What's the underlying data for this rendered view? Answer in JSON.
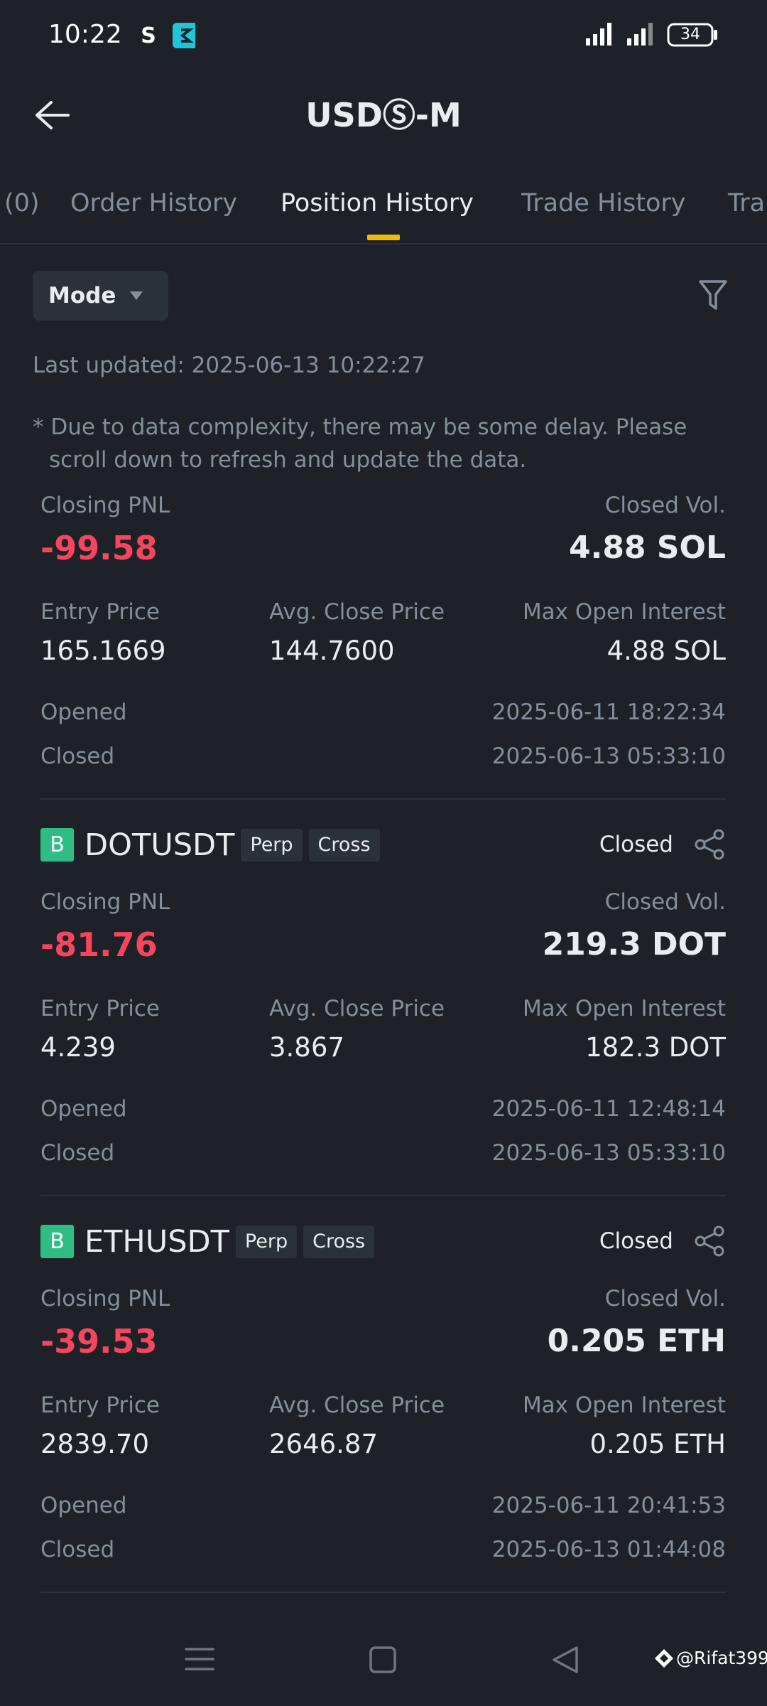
{
  "status_bar": {
    "time": "10:22",
    "battery": "34"
  },
  "header": {
    "title": "USDⓈ-M"
  },
  "tabs": [
    "(0)",
    "Order History",
    "Position History",
    "Trade History",
    "Tra"
  ],
  "active_tab": 2,
  "filter": {
    "mode": "Mode"
  },
  "last_updated": "Last updated: 2025-06-13 10:22:27",
  "note": "* Due to data complexity, there may be some delay. Please scroll down to refresh and update the data.",
  "positions": [
    {
      "closing_pnl_label": "Closing PNL",
      "closing_pnl": "-99.58",
      "closed_vol_label": "Closed Vol.",
      "closed_vol": "4.88 SOL",
      "entry_price_label": "Entry Price",
      "entry_price": "165.1669",
      "avg_close_price_label": "Avg. Close Price",
      "avg_close_price": "144.7600",
      "max_open_interest_label": "Max Open Interest",
      "max_open_interest": "4.88 SOL",
      "opened_label": "Opened",
      "opened": "2025-06-11 18:22:34",
      "closed_label": "Closed",
      "closed": "2025-06-13 05:33:10"
    },
    {
      "side": "B",
      "symbol": "DOTUSDT",
      "tags": [
        "Perp",
        "Cross"
      ],
      "status": "Closed",
      "closing_pnl_label": "Closing PNL",
      "closing_pnl": "-81.76",
      "closed_vol_label": "Closed Vol.",
      "closed_vol": "219.3 DOT",
      "entry_price_label": "Entry Price",
      "entry_price": "4.239",
      "avg_close_price_label": "Avg. Close Price",
      "avg_close_price": "3.867",
      "max_open_interest_label": "Max Open Interest",
      "max_open_interest": "182.3 DOT",
      "opened_label": "Opened",
      "opened": "2025-06-11 12:48:14",
      "closed_label": "Closed",
      "closed": "2025-06-13 05:33:10"
    },
    {
      "side": "B",
      "symbol": "ETHUSDT",
      "tags": [
        "Perp",
        "Cross"
      ],
      "status": "Closed",
      "closing_pnl_label": "Closing PNL",
      "closing_pnl": "-39.53",
      "closed_vol_label": "Closed Vol.",
      "closed_vol": "0.205 ETH",
      "entry_price_label": "Entry Price",
      "entry_price": "2839.70",
      "avg_close_price_label": "Avg. Close Price",
      "avg_close_price": "2646.87",
      "max_open_interest_label": "Max Open Interest",
      "max_open_interest": "0.205 ETH",
      "opened_label": "Opened",
      "opened": "2025-06-11 20:41:53",
      "closed_label": "Closed",
      "closed": "2025-06-13 01:44:08"
    }
  ],
  "watermark": "@Rifat399"
}
